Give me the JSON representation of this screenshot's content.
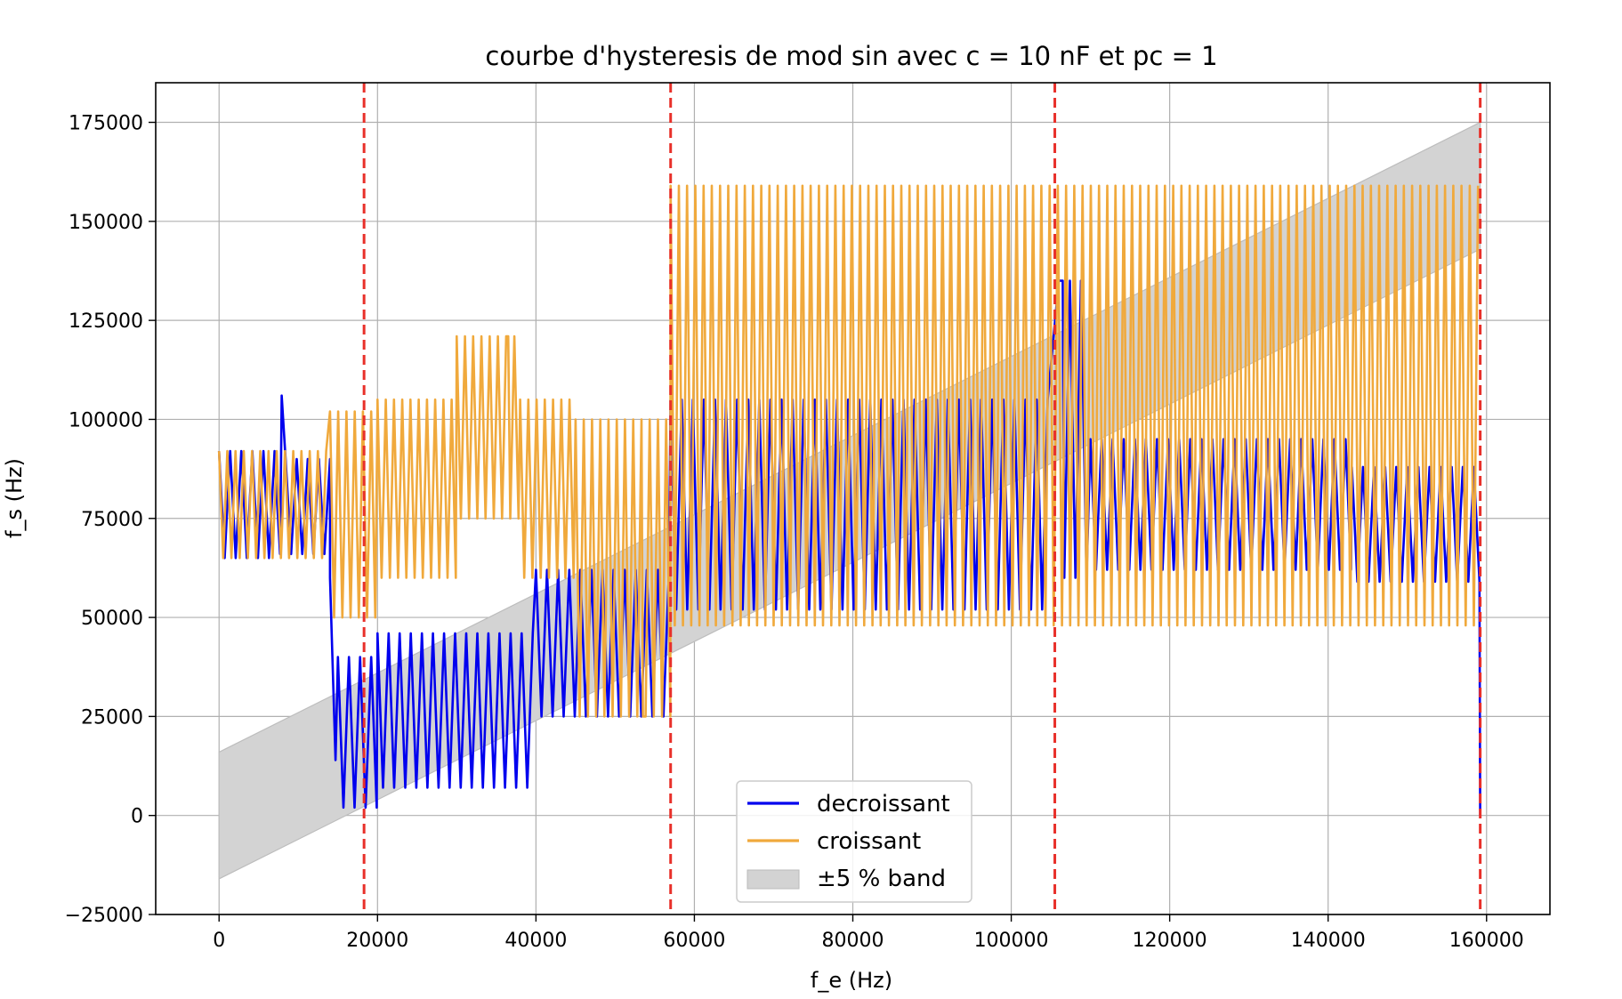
{
  "chart_data": {
    "type": "line",
    "title": "courbe d'hysteresis de mod sin avec c = 10 nF et pc = 1",
    "xlabel": "f_e (Hz)",
    "ylabel": "f_s (Hz)",
    "xlim": [
      -8000,
      168000
    ],
    "ylim": [
      -25000,
      185000
    ],
    "xticks": [
      0,
      20000,
      40000,
      60000,
      80000,
      100000,
      120000,
      140000,
      160000
    ],
    "yticks": [
      -25000,
      0,
      25000,
      50000,
      75000,
      100000,
      125000,
      150000,
      175000
    ],
    "xtick_labels": [
      "0",
      "20000",
      "40000",
      "60000",
      "80000",
      "100000",
      "120000",
      "140000",
      "160000"
    ],
    "ytick_labels": [
      "−25000",
      "0",
      "25000",
      "50000",
      "75000",
      "100000",
      "125000",
      "150000",
      "175000"
    ],
    "grid": true,
    "legend_position": "bottom-center",
    "vlines": {
      "x": [
        18300,
        57000,
        105500,
        159200
      ],
      "color": "#e8302a",
      "style": "dashed"
    },
    "band": {
      "name": "±5 % band",
      "color": "#d3d3d3",
      "lower": [
        [
          0,
          -16000
        ],
        [
          159200,
          143000
        ]
      ],
      "upper": [
        [
          0,
          16000
        ],
        [
          159200,
          175000
        ]
      ]
    },
    "series": [
      {
        "name": "decroissant",
        "color": "#0000ee",
        "envelope": [
          {
            "x": [
              0,
              7000
            ],
            "low": 65000,
            "high": 92000
          },
          {
            "x": [
              7000,
              14000
            ],
            "low": 66000,
            "high": 90000
          },
          {
            "x": [
              14000,
              15000
            ],
            "low": 14000,
            "high": 60000
          },
          {
            "x": [
              15000,
              20000
            ],
            "low": 2000,
            "high": 40000
          },
          {
            "x": [
              20000,
              40000
            ],
            "low": 7000,
            "high": 46000
          },
          {
            "x": [
              40000,
              57000
            ],
            "low": 25000,
            "high": 62000
          },
          {
            "x": [
              57000,
              105000
            ],
            "low": 52000,
            "high": 105000
          },
          {
            "x": [
              106000,
              110000
            ],
            "low": 60000,
            "high": 135000
          },
          {
            "x": [
              110000,
              143000
            ],
            "low": 62000,
            "high": 95000
          },
          {
            "x": [
              143000,
              159200
            ],
            "low": 59000,
            "high": 88000
          }
        ],
        "peaks": [
          [
            7900,
            106000
          ],
          [
            106500,
            135000
          ],
          [
            159200,
            0
          ]
        ]
      },
      {
        "name": "croissant",
        "color": "#f0a93c",
        "envelope": [
          {
            "x": [
              0,
              14000
            ],
            "low": 65000,
            "high": 92000
          },
          {
            "x": [
              14000,
              20000
            ],
            "low": 50000,
            "high": 102000
          },
          {
            "x": [
              20000,
              30000
            ],
            "low": 60000,
            "high": 105000
          },
          {
            "x": [
              30000,
              38000
            ],
            "low": 75000,
            "high": 121000
          },
          {
            "x": [
              38000,
              45000
            ],
            "low": 60000,
            "high": 105000
          },
          {
            "x": [
              45000,
              57000
            ],
            "low": 25000,
            "high": 100000
          },
          {
            "x": [
              57000,
              159200
            ],
            "low": 48000,
            "high": 159000
          }
        ],
        "peaks": [
          [
            36500,
            121000
          ],
          [
            53500,
            25000
          ]
        ]
      }
    ]
  }
}
